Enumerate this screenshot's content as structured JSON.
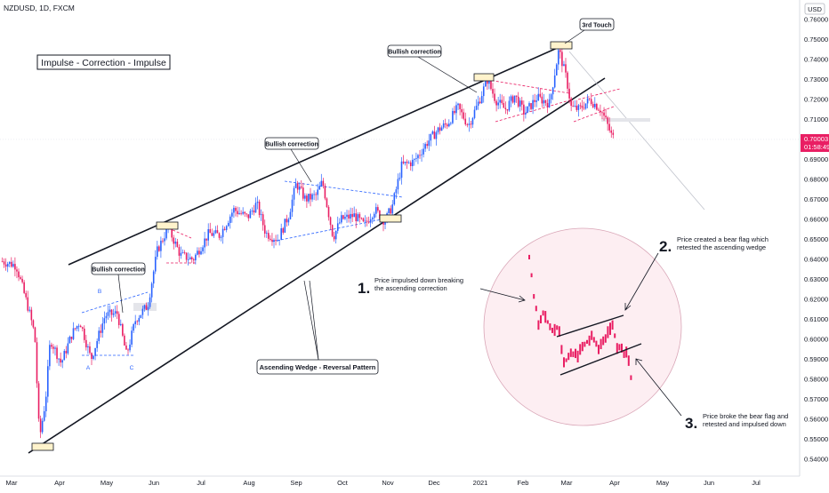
{
  "symbol_header": "NZDUSD, 1D, FXCM",
  "currency_badge": "USD",
  "colors": {
    "up": "#2962ff",
    "down": "#e91e63",
    "trendline": "#131722",
    "dashed_red": "#e91e63",
    "dashed_blue": "#2962ff",
    "price_tag": "#e91e63"
  },
  "chart_data": {
    "type": "candlestick",
    "x_ticks": [
      "Mar",
      "Apr",
      "May",
      "Jun",
      "Jul",
      "Aug",
      "Sep",
      "Oct",
      "Nov",
      "Dec",
      "2021",
      "Feb",
      "Mar",
      "Apr",
      "May",
      "Jun",
      "Jul"
    ],
    "y_ticks": [
      "0.76000",
      "0.75000",
      "0.74000",
      "0.73000",
      "0.72000",
      "0.71000",
      "0.70000",
      "0.69000",
      "0.68000",
      "0.67000",
      "0.66000",
      "0.65000",
      "0.64000",
      "0.63000",
      "0.62000",
      "0.61000",
      "0.60000",
      "0.59000",
      "0.58000",
      "0.57000",
      "0.56000",
      "0.55000",
      "0.54000"
    ],
    "ylim": [
      0.537,
      0.768
    ],
    "last_price": "0.70003",
    "countdown": "01:58:49",
    "series_path": [
      [
        "2020-02-24",
        0.639
      ],
      [
        "2020-03-04",
        0.637
      ],
      [
        "2020-03-12",
        0.615
      ],
      [
        "2020-03-16",
        0.602
      ],
      [
        "2020-03-19",
        0.55
      ],
      [
        "2020-03-23",
        0.57
      ],
      [
        "2020-03-26",
        0.6
      ],
      [
        "2020-04-02",
        0.588
      ],
      [
        "2020-04-09",
        0.603
      ],
      [
        "2020-04-14",
        0.609
      ],
      [
        "2020-04-21",
        0.59
      ],
      [
        "2020-04-30",
        0.612
      ],
      [
        "2020-05-08",
        0.613
      ],
      [
        "2020-05-14",
        0.592
      ],
      [
        "2020-05-20",
        0.61
      ],
      [
        "2020-05-28",
        0.617
      ],
      [
        "2020-06-03",
        0.644
      ],
      [
        "2020-06-10",
        0.656
      ],
      [
        "2020-06-18",
        0.642
      ],
      [
        "2020-06-26",
        0.64
      ],
      [
        "2020-07-06",
        0.653
      ],
      [
        "2020-07-13",
        0.652
      ],
      [
        "2020-07-22",
        0.665
      ],
      [
        "2020-07-31",
        0.661
      ],
      [
        "2020-08-06",
        0.668
      ],
      [
        "2020-08-12",
        0.653
      ],
      [
        "2020-08-20",
        0.65
      ],
      [
        "2020-08-27",
        0.662
      ],
      [
        "2020-09-01",
        0.678
      ],
      [
        "2020-09-07",
        0.67
      ],
      [
        "2020-09-14",
        0.672
      ],
      [
        "2020-09-18",
        0.679
      ],
      [
        "2020-09-25",
        0.651
      ],
      [
        "2020-09-30",
        0.66
      ],
      [
        "2020-10-09",
        0.662
      ],
      [
        "2020-10-16",
        0.657
      ],
      [
        "2020-10-23",
        0.665
      ],
      [
        "2020-10-30",
        0.659
      ],
      [
        "2020-11-04",
        0.667
      ],
      [
        "2020-11-10",
        0.687
      ],
      [
        "2020-11-18",
        0.689
      ],
      [
        "2020-11-27",
        0.699
      ],
      [
        "2020-12-04",
        0.705
      ],
      [
        "2020-12-10",
        0.708
      ],
      [
        "2020-12-17",
        0.716
      ],
      [
        "2020-12-24",
        0.707
      ],
      [
        "2020-12-31",
        0.719
      ],
      [
        "2021-01-06",
        0.73
      ],
      [
        "2021-01-12",
        0.72
      ],
      [
        "2021-01-19",
        0.715
      ],
      [
        "2021-01-26",
        0.722
      ],
      [
        "2021-02-02",
        0.713
      ],
      [
        "2021-02-10",
        0.721
      ],
      [
        "2021-02-18",
        0.718
      ],
      [
        "2021-02-24",
        0.745
      ],
      [
        "2021-03-01",
        0.73
      ],
      [
        "2021-03-04",
        0.716
      ],
      [
        "2021-03-09",
        0.715
      ],
      [
        "2021-03-16",
        0.72
      ],
      [
        "2021-03-23",
        0.715
      ],
      [
        "2021-03-26",
        0.71
      ],
      [
        "2021-03-30",
        0.702
      ],
      [
        "2021-04-01",
        0.7
      ]
    ]
  },
  "annotations": {
    "title_box": "Impulse - Correction - Impulse",
    "bullish_correction_1": "Bullish correction",
    "bullish_correction_2": "Bullish correction",
    "bullish_correction_3": "Bullish correction",
    "third_touch": "3rd Touch",
    "wedge_label": "Ascending Wedge - Reversal Pattern",
    "abc": [
      "A",
      "B",
      "C"
    ],
    "inset_notes": [
      {
        "num": "1.",
        "lines": [
          "Price impulsed down breaking",
          "the ascending correction"
        ]
      },
      {
        "num": "2.",
        "lines": [
          "Price created a bear flag which",
          "retested the ascending wedge"
        ]
      },
      {
        "num": "3.",
        "lines": [
          "Price broke the bear flag and",
          "retested and impulsed down"
        ]
      }
    ]
  }
}
